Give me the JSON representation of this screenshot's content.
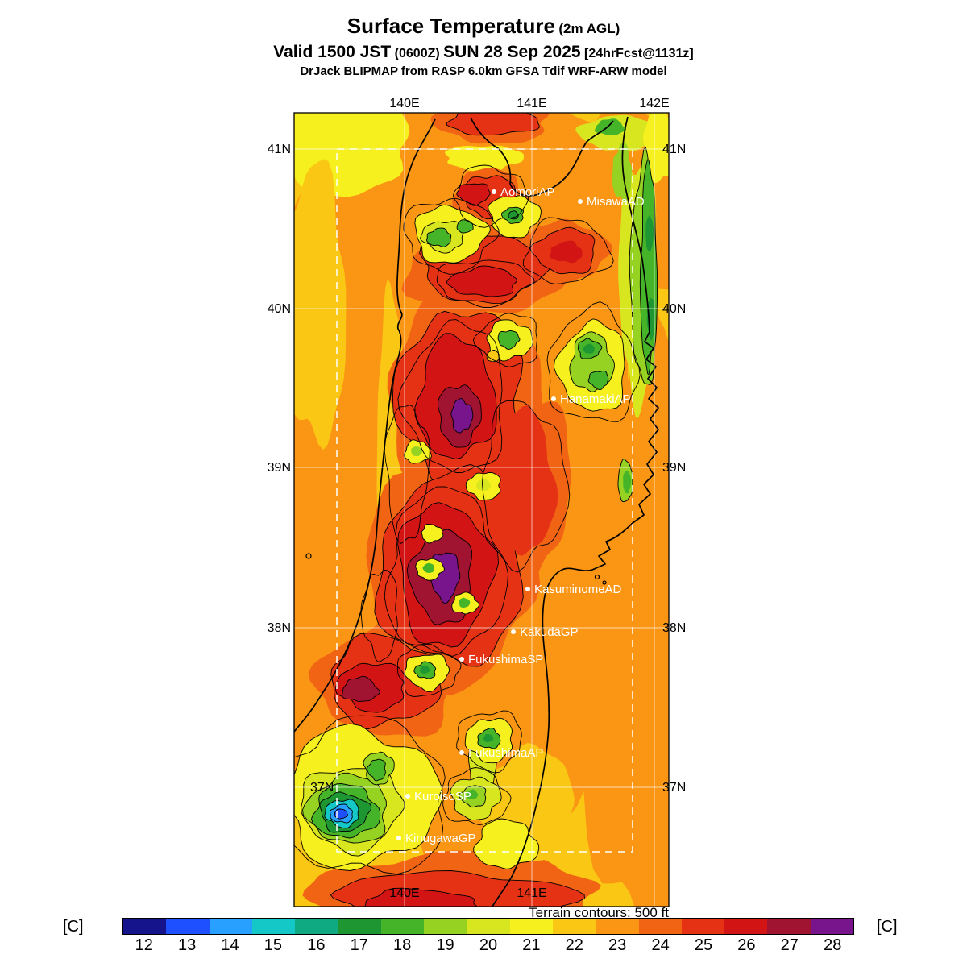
{
  "header": {
    "title": "Surface Temperature",
    "title_note": "(2m AGL)",
    "valid_prefix": "Valid 1500 JST",
    "valid_time_note": "(0600Z)",
    "valid_date": "SUN 28 Sep 2025",
    "forecast_note": "[24hrFcst@1131z]",
    "model_line": "DrJack BLIPMAP from RASP 6.0km GFSA Tdif WRF-ARW model"
  },
  "map": {
    "top_lon_labels": [
      "140E",
      "141E",
      "142E"
    ],
    "bottom_lon_labels": [
      "140E",
      "141E"
    ],
    "left_lat_labels": [
      "41N",
      "40N",
      "39N",
      "38N",
      "37N"
    ],
    "right_lat_labels": [
      "41N",
      "40N",
      "39N",
      "38N",
      "37N"
    ],
    "stations": [
      {
        "name": "AomoriAP"
      },
      {
        "name": "MisawaAD"
      },
      {
        "name": "HanamakiAP"
      },
      {
        "name": "KasuminomeAD"
      },
      {
        "name": "KakudaGP"
      },
      {
        "name": "FukushimaSP"
      },
      {
        "name": "FukushimaAP"
      },
      {
        "name": "KuroisoSP"
      },
      {
        "name": "KinugawaGP"
      }
    ],
    "terrain_note": "Terrain contours: 500 ft"
  },
  "colorbar": {
    "unit_left": "[C]",
    "unit_right": "[C]",
    "ticks": [
      "12",
      "13",
      "14",
      "15",
      "16",
      "17",
      "18",
      "19",
      "20",
      "21",
      "22",
      "23",
      "24",
      "25",
      "26",
      "27",
      "28"
    ],
    "colors": [
      "#16148C",
      "#1E50FF",
      "#28A0FF",
      "#14C8C8",
      "#0FAA82",
      "#1E9632",
      "#46B428",
      "#96D222",
      "#D7E61E",
      "#F5F01E",
      "#FAC814",
      "#FA9614",
      "#F06414",
      "#E63214",
      "#D21414",
      "#A01432",
      "#78148C"
    ]
  }
}
